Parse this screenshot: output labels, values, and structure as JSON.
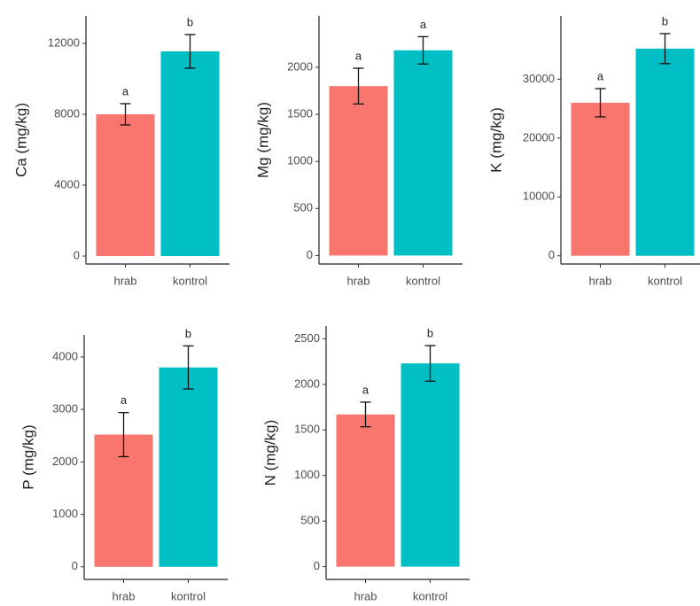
{
  "chart_data": [
    {
      "type": "bar",
      "ylabel": "Ca (mg/kg)",
      "categories": [
        "hrab",
        "kontrol"
      ],
      "values": [
        8000,
        11550
      ],
      "errors": [
        600,
        950
      ],
      "letters": [
        "a",
        "b"
      ],
      "colors": [
        "#f8766d",
        "#00bfc4"
      ],
      "ylim": [
        -450,
        13550
      ],
      "yticks": [
        0,
        4000,
        8000,
        12000
      ]
    },
    {
      "type": "bar",
      "ylabel": "Mg (mg/kg)",
      "categories": [
        "hrab",
        "kontrol"
      ],
      "values": [
        1800,
        2180
      ],
      "errors": [
        190,
        145
      ],
      "letters": [
        "a",
        "a"
      ],
      "colors": [
        "#f8766d",
        "#00bfc4"
      ],
      "ylim": [
        -90,
        2545
      ],
      "yticks": [
        0,
        500,
        1000,
        1500,
        2000
      ]
    },
    {
      "type": "bar",
      "ylabel": "K (mg/kg)",
      "categories": [
        "hrab",
        "kontrol"
      ],
      "values": [
        26000,
        35200
      ],
      "errors": [
        2400,
        2550
      ],
      "letters": [
        "a",
        "b"
      ],
      "colors": [
        "#f8766d",
        "#00bfc4"
      ],
      "ylim": [
        -1400,
        40750
      ],
      "yticks": [
        0,
        10000,
        20000,
        30000
      ]
    },
    {
      "type": "bar",
      "ylabel": "P (mg/kg)",
      "categories": [
        "hrab",
        "kontrol"
      ],
      "values": [
        2520,
        3800
      ],
      "errors": [
        420,
        410
      ],
      "letters": [
        "a",
        "b"
      ],
      "colors": [
        "#f8766d",
        "#00bfc4"
      ],
      "ylim": [
        -240,
        4420
      ],
      "yticks": [
        0,
        1000,
        2000,
        3000,
        4000
      ]
    },
    {
      "type": "bar",
      "ylabel": "N (mg/kg)",
      "categories": [
        "hrab",
        "kontrol"
      ],
      "values": [
        1670,
        2230
      ],
      "errors": [
        135,
        195
      ],
      "letters": [
        "a",
        "b"
      ],
      "colors": [
        "#f8766d",
        "#00bfc4"
      ],
      "ylim": [
        -140,
        2640
      ],
      "yticks": [
        0,
        500,
        1000,
        1500,
        2000,
        2500
      ]
    }
  ]
}
